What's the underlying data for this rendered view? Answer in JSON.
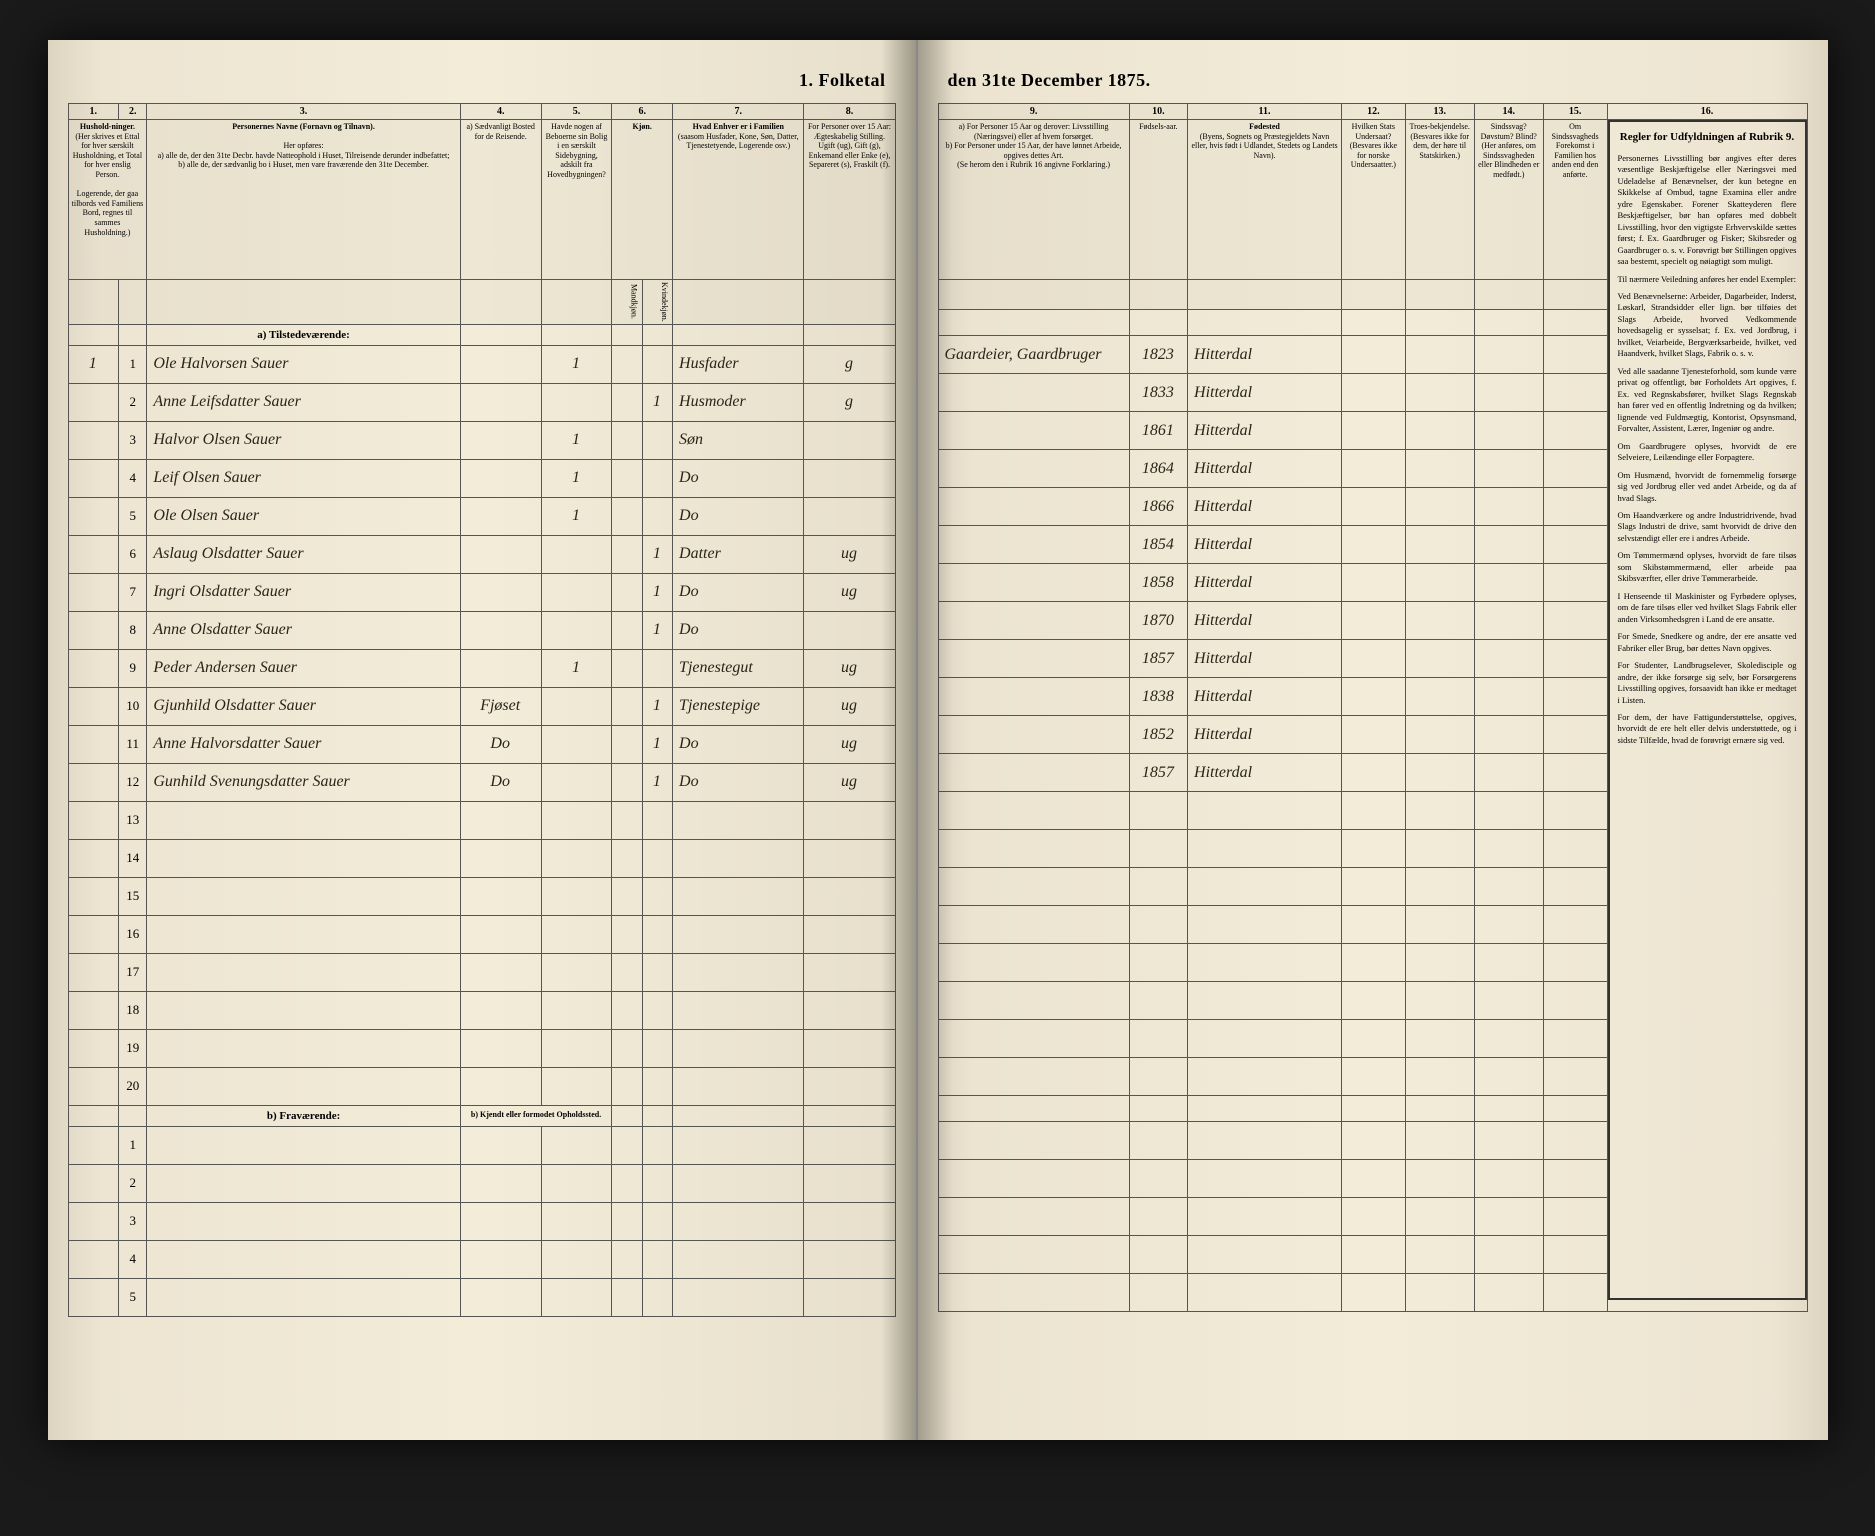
{
  "document": {
    "title_left": "1. Folketal",
    "title_right": "den 31te December 1875.",
    "section_a": "a) Tilstedeværende:",
    "section_b": "b) Fraværende:",
    "section_b_note": "b) Kjendt eller formodet Opholdssted."
  },
  "columns_left": {
    "c1": "1.",
    "c2": "2.",
    "c3": "3.",
    "c4": "4.",
    "c5": "5.",
    "c6": "6.",
    "c7": "7.",
    "c8": "8.",
    "h1": "Hushold-ninger.",
    "h1_sub": "(Her skrives et Ettal for hver særskilt Husholdning, et Total for hver enslig Person.",
    "h1_note": "Logerende, der gaa tilbords ved Familiens Bord, regnes til sammes Husholdning.)",
    "h3": "Personernes Navne (Fornavn og Tilnavn).",
    "h3_sub": "Her opføres:\na) alle de, der den 31te Decbr. havde Natteophold i Huset, Tilreisende derunder indbefattet;\nb) alle de, der sædvanlig bo i Huset, men vare fraværende den 31te December.",
    "h4": "a) Sædvanligt Bosted for de Reisende.",
    "h5": "Havde nogen af Beboerne sin Bolig i en særskilt Sidebygning, adskilt fra Hovedbygningen?",
    "h6": "Kjøn.",
    "h6m": "Mandkjøn.",
    "h6k": "Kvindekjøn.",
    "h7": "Hvad Enhver er i Familien",
    "h7_sub": "(saasom Husfader, Kone, Søn, Datter, Tjenestetyende, Logerende osv.)",
    "h8": "For Personer over 15 Aar: Ægteskabelig Stilling.",
    "h8_sub": "Ugift (ug), Gift (g), Enkemand eller Enke (e), Separeret (s), Fraskilt (f)."
  },
  "columns_right": {
    "c9": "9.",
    "c10": "10.",
    "c11": "11.",
    "c12": "12.",
    "c13": "13.",
    "c14": "14.",
    "c15": "15.",
    "c16": "16.",
    "h9": "a) For Personer 15 Aar og derover: Livsstilling (Næringsvei) eller af hvem forsørget.\nb) For Personer under 15 Aar, der have lønnet Arbeide, opgives dettes Art.",
    "h9_note": "(Se herom den i Rubrik 16 angivne Forklaring.)",
    "h10": "Fødsels-aar.",
    "h11": "Fødested",
    "h11_sub": "(Byens, Sognets og Præstegjeldets Navn eller, hvis født i Udlandet, Stedets og Landets Navn).",
    "h12": "Hvilken Stats Undersaat?",
    "h12_sub": "(Besvares ikke for norske Undersaatter.)",
    "h13": "Troes-bekjendelse.",
    "h13_sub": "(Besvares ikke for dem, der høre til Statskirken.)",
    "h14": "Sindssvag? Døvstum? Blind?",
    "h14_sub": "(Her anføres, om Sindssvagheden eller Blindheden er medfødt.)",
    "h15": "Om Sindssvagheds Forekomst i Familien hos anden end den anførte.",
    "h16": "Regler for Udfyldningen af Rubrik 9."
  },
  "rows": [
    {
      "n": "1",
      "name": "Ole Halvorsen Sauer",
      "c4": "",
      "c5": "1",
      "c6k": "",
      "c7": "Husfader",
      "c8": "g",
      "c9": "Gaardeier, Gaardbruger",
      "c10": "1823",
      "c11": "Hitterdal"
    },
    {
      "n": "2",
      "name": "Anne Leifsdatter Sauer",
      "c4": "",
      "c5": "",
      "c6k": "1",
      "c7": "Husmoder",
      "c8": "g",
      "c9": "",
      "c10": "1833",
      "c11": "Hitterdal"
    },
    {
      "n": "3",
      "name": "Halvor Olsen Sauer",
      "c4": "",
      "c5": "1",
      "c6k": "",
      "c7": "Søn",
      "c8": "",
      "c9": "",
      "c10": "1861",
      "c11": "Hitterdal"
    },
    {
      "n": "4",
      "name": "Leif Olsen Sauer",
      "c4": "",
      "c5": "1",
      "c6k": "",
      "c7": "Do",
      "c8": "",
      "c9": "",
      "c10": "1864",
      "c11": "Hitterdal"
    },
    {
      "n": "5",
      "name": "Ole Olsen Sauer",
      "c4": "",
      "c5": "1",
      "c6k": "",
      "c7": "Do",
      "c8": "",
      "c9": "",
      "c10": "1866",
      "c11": "Hitterdal"
    },
    {
      "n": "6",
      "name": "Aslaug Olsdatter Sauer",
      "c4": "",
      "c5": "",
      "c6k": "1",
      "c7": "Datter",
      "c8": "ug",
      "c9": "",
      "c10": "1854",
      "c11": "Hitterdal"
    },
    {
      "n": "7",
      "name": "Ingri Olsdatter Sauer",
      "c4": "",
      "c5": "",
      "c6k": "1",
      "c7": "Do",
      "c8": "ug",
      "c9": "",
      "c10": "1858",
      "c11": "Hitterdal"
    },
    {
      "n": "8",
      "name": "Anne Olsdatter Sauer",
      "c4": "",
      "c5": "",
      "c6k": "1",
      "c7": "Do",
      "c8": "",
      "c9": "",
      "c10": "1870",
      "c11": "Hitterdal"
    },
    {
      "n": "9",
      "name": "Peder Andersen Sauer",
      "c4": "",
      "c5": "1",
      "c6k": "",
      "c7": "Tjenestegut",
      "c8": "ug",
      "c9": "",
      "c10": "1857",
      "c11": "Hitterdal"
    },
    {
      "n": "10",
      "name": "Gjunhild Olsdatter Sauer",
      "c4": "Fjøset",
      "c5": "",
      "c6k": "1",
      "c7": "Tjenestepige",
      "c8": "ug",
      "c9": "",
      "c10": "1838",
      "c11": "Hitterdal"
    },
    {
      "n": "11",
      "name": "Anne Halvorsdatter Sauer",
      "c4": "Do",
      "c5": "",
      "c6k": "1",
      "c7": "Do",
      "c8": "ug",
      "c9": "",
      "c10": "1852",
      "c11": "Hitterdal"
    },
    {
      "n": "12",
      "name": "Gunhild Svenungsdatter Sauer",
      "c4": "Do",
      "c5": "",
      "c6k": "1",
      "c7": "Do",
      "c8": "ug",
      "c9": "",
      "c10": "1857",
      "c11": "Hitterdal"
    }
  ],
  "rubrik": {
    "title": "Regler for Udfyldningen af Rubrik 9.",
    "p1": "Personernes Livsstilling bør angives efter deres væsentlige Beskjæftigelse eller Næringsvei med Udeladelse af Benævnelser, der kun betegne en Skikkelse af Ombud, tagne Examina eller andre ydre Egenskaber. Forener Skatteyderen flere Beskjæftigelser, bør han opføres med dobbelt Livsstilling, hvor den vigtigste Erhvervskilde sættes først; f. Ex. Gaardbruger og Fisker; Skibsreder og Gaardbruger o. s. v. Forøvrigt bør Stillingen opgives saa bestemt, specielt og nøiagtigt som muligt.",
    "p2": "Til nærmere Veiledning anføres her endel Exempler:",
    "p3": "Ved Benævnelserne: Arbeider, Dagarbeider, Inderst, Løskarl, Strandsidder eller lign. bør tilføies det Slags Arbeide, hvorved Vedkommende hovedsagelig er sysselsat; f. Ex. ved Jordbrug, i hvilket, Veiarbeide, Bergværksarbeide, hvilket, ved Haandverk, hvilket Slags, Fabrik o. s. v.",
    "p4": "Ved alle saadanne Tjenesteforhold, som kunde være privat og offentligt, bør Forholdets Art opgives, f. Ex. ved Regnskabsfører, hvilket Slags Regnskab han fører ved en offentlig Indretning og da hvilken; lignende ved Fuldmægtig, Kontorist, Opsynsmand, Forvalter, Assistent, Lærer, Ingeniør og andre.",
    "p5": "Om Gaardbrugere oplyses, hvorvidt de ere Selveiere, Leilændinge eller Forpagtere.",
    "p6": "Om Husmænd, hvorvidt de fornemmelig forsørge sig ved Jordbrug eller ved andet Arbeide, og da af hvad Slags.",
    "p7": "Om Haandværkere og andre Industridrivende, hvad Slags Industri de drive, samt hvorvidt de drive den selvstændigt eller ere i andres Arbeide.",
    "p8": "Om Tømmermænd oplyses, hvorvidt de fare tilsøs som Skibstømmermænd, eller arbeide paa Skibsværfter, eller drive Tømmerarbeide.",
    "p9": "I Henseende til Maskinister og Fyrbødere oplyses, om de fare tilsøs eller ved hvilket Slags Fabrik eller anden Virksomhedsgren i Land de ere ansatte.",
    "p10": "For Smede, Snedkere og andre, der ere ansatte ved Fabriker eller Brug, bør dettes Navn opgives.",
    "p11": "For Studenter, Landbrugselever, Skoledisciple og andre, der ikke forsørge sig selv, bør Forsørgerens Livsstilling opgives, forsaavidt han ikke er medtaget i Listen.",
    "p12": "For dem, der have Fattigunderstøttelse, opgives, hvorvidt de ere helt eller delvis understøttede, og i sidste Tilfælde, hvad de forøvrigt ernære sig ved."
  },
  "style": {
    "page_bg": "#f2ecd8",
    "border_color": "#555",
    "handwriting_color": "#2a2418",
    "print_color": "#1a1a1a"
  }
}
